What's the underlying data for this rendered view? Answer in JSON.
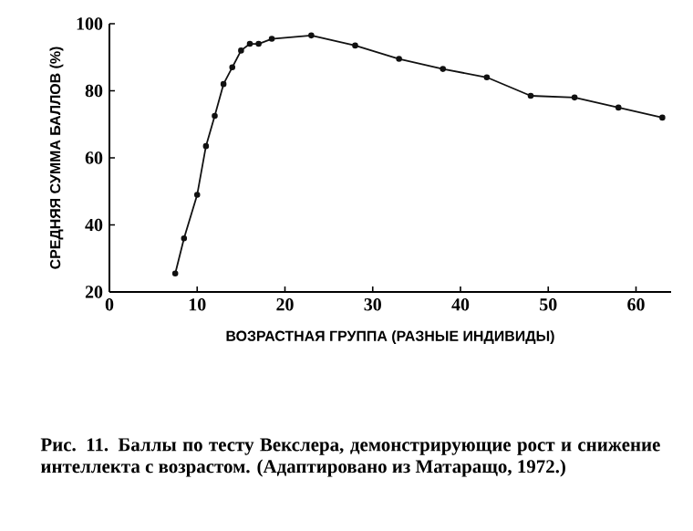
{
  "chart_data": {
    "type": "line",
    "ylabel": "СРЕДНЯЯ СУММА БАЛЛОВ (%)",
    "xlabel": "ВОЗРАСТНАЯ ГРУППА (РАЗНЫЕ ИНДИВИДЫ)",
    "x": [
      7.5,
      8.5,
      10,
      11,
      12,
      13,
      14,
      15,
      16,
      17,
      18.5,
      23,
      28,
      33,
      38,
      43,
      48,
      53,
      58,
      63
    ],
    "values": [
      25.5,
      36,
      49,
      63.5,
      72.5,
      82,
      87,
      92,
      94,
      94,
      95.5,
      96.5,
      93.5,
      89.5,
      86.5,
      84,
      78.5,
      78,
      75,
      72
    ],
    "color": "#111111",
    "marker": "circle",
    "line_style": "solid",
    "xlim": [
      0,
      64
    ],
    "ylim": [
      20,
      100
    ],
    "xticks": [
      0,
      10,
      20,
      30,
      40,
      50,
      60
    ],
    "yticks": [
      20,
      40,
      60,
      80,
      100
    ],
    "annotations": [
      "**Рис. 11.** Баллы по тесту Векслера, демонстрирующие рост и снижение интеллекта с возрастом. (Адаптировано из Матаращо, 1972.)"
    ]
  }
}
